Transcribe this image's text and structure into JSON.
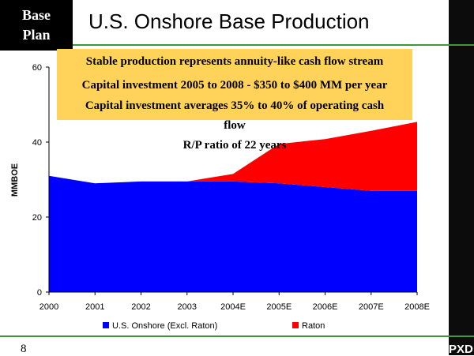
{
  "header": {
    "badge_line1": "Base",
    "badge_line2": "Plan",
    "title": "U.S. Onshore Base Production"
  },
  "callout": {
    "lines": [
      "Stable production represents annuity-like cash flow stream",
      "Capital investment 2005 to 2008 - $350 to $400 MM per year",
      "Capital investment averages 35% to 40% of operating cash",
      "flow",
      "R/P ratio of 22 years"
    ],
    "background": "#ffd25a"
  },
  "footer": {
    "page_number": "8",
    "logo_text": "PXD"
  },
  "colors": {
    "us_onshore": "#0000ff",
    "raton": "#ff0000",
    "accent_line": "#3a9a3a"
  },
  "chart_data": {
    "type": "area",
    "stacked": true,
    "title": "U.S. Onshore Base Production",
    "xlabel": "",
    "ylabel": "MMBOE",
    "categories": [
      "2000",
      "2001",
      "2002",
      "2003",
      "2004E",
      "2005E",
      "2006E",
      "2007E",
      "2008E"
    ],
    "ylim": [
      0,
      60
    ],
    "yticks": [
      0,
      20,
      40,
      60
    ],
    "series": [
      {
        "name": "U.S. Onshore (Excl. Raton)",
        "color": "#0000ff",
        "values": [
          31,
          29,
          29.5,
          29.5,
          29.5,
          29,
          28,
          27,
          27
        ]
      },
      {
        "name": "Raton",
        "color": "#ff0000",
        "values": [
          0,
          0,
          0,
          0,
          2,
          10.5,
          12.8,
          16,
          18.4
        ]
      }
    ],
    "legend_position": "bottom",
    "grid": false
  }
}
